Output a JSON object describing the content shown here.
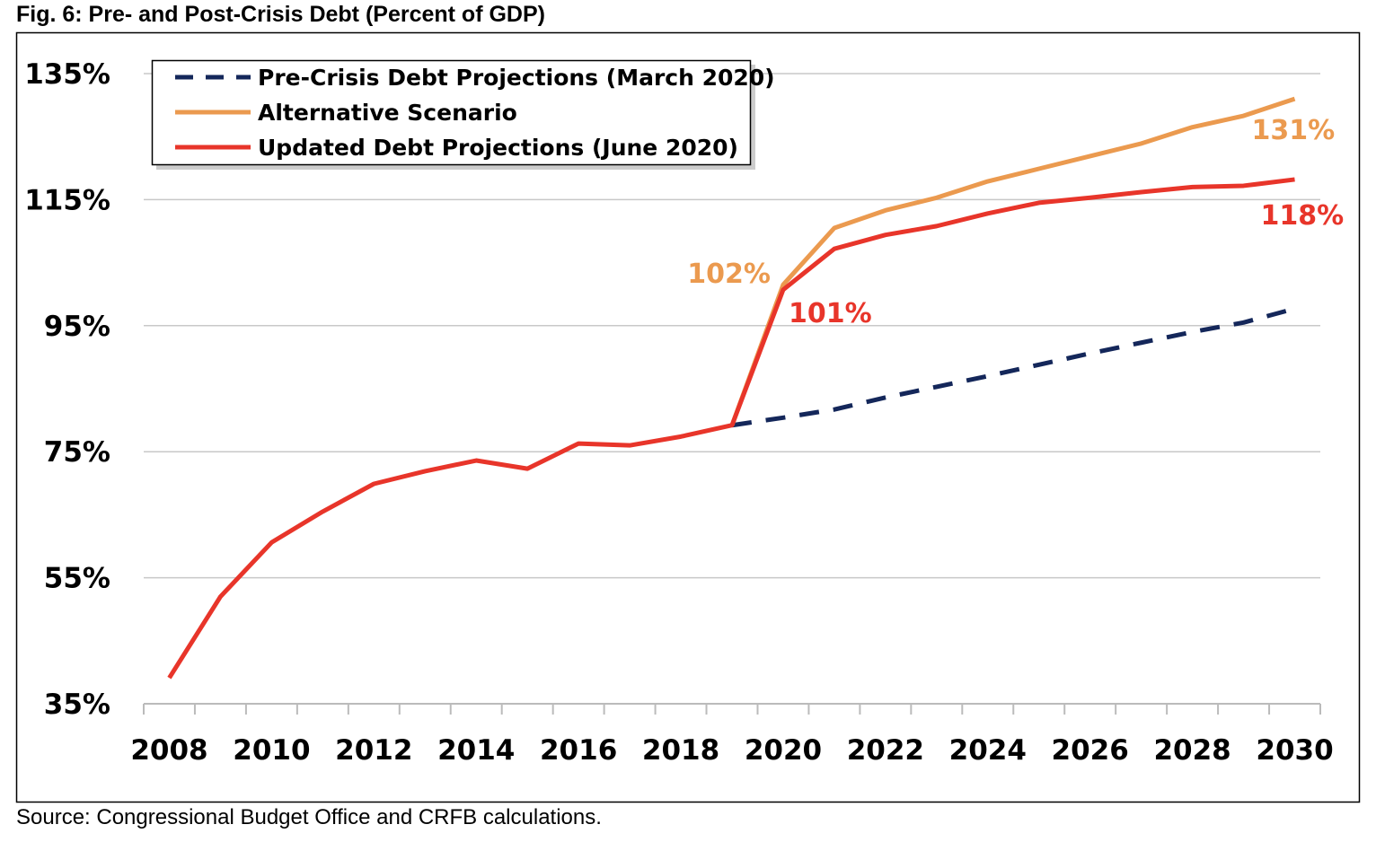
{
  "title": "Fig. 6: Pre- and Post-Crisis Debt (Percent of GDP)",
  "source": "Source: Congressional Budget Office and CRFB calculations.",
  "chart_data": {
    "type": "line",
    "title": "Fig. 6: Pre- and Post-Crisis Debt (Percent of GDP)",
    "xlabel": "",
    "ylabel": "",
    "x": [
      2008,
      2009,
      2010,
      2011,
      2012,
      2013,
      2014,
      2015,
      2016,
      2017,
      2018,
      2019,
      2020,
      2021,
      2022,
      2023,
      2024,
      2025,
      2026,
      2027,
      2028,
      2029,
      2030
    ],
    "x_tick_labels": [
      "2008",
      "2010",
      "2012",
      "2014",
      "2016",
      "2018",
      "2020",
      "2022",
      "2024",
      "2026",
      "2028",
      "2030"
    ],
    "y_tick_values": [
      35,
      55,
      75,
      95,
      115,
      135
    ],
    "y_tick_labels": [
      "35%",
      "55%",
      "75%",
      "95%",
      "115%",
      "135%"
    ],
    "ylim": [
      35,
      135
    ],
    "grid": true,
    "legend_position": "top-left",
    "series": [
      {
        "name": "Pre-Crisis Debt Projections (March 2020)",
        "color": "#14275a",
        "style": "dashed",
        "values": [
          null,
          null,
          null,
          null,
          null,
          null,
          null,
          null,
          null,
          null,
          null,
          79.2,
          80.4,
          81.7,
          83.6,
          85.3,
          87.0,
          88.8,
          90.6,
          92.3,
          94.0,
          95.5,
          97.7
        ]
      },
      {
        "name": "Alternative Scenario",
        "color": "#eb9a4f",
        "style": "solid",
        "values": [
          null,
          null,
          null,
          null,
          null,
          null,
          null,
          null,
          null,
          null,
          null,
          79.2,
          101.5,
          110.5,
          113.3,
          115.3,
          117.9,
          119.9,
          121.9,
          123.9,
          126.5,
          128.3,
          131.0
        ]
      },
      {
        "name": "Updated Debt Projections (June 2020)",
        "color": "#e8352a",
        "style": "solid",
        "values": [
          39.1,
          52.0,
          60.6,
          65.5,
          69.9,
          71.9,
          73.6,
          72.3,
          76.3,
          76.0,
          77.4,
          79.2,
          100.7,
          107.2,
          109.4,
          110.8,
          112.8,
          114.5,
          115.3,
          116.2,
          117.0,
          117.2,
          118.2
        ]
      }
    ],
    "annotations": [
      {
        "text": "102%",
        "series": 1,
        "x": 2020
      },
      {
        "text": "101%",
        "series": 2,
        "x": 2020
      },
      {
        "text": "131%",
        "series": 1,
        "x": 2030
      },
      {
        "text": "118%",
        "series": 2,
        "x": 2030
      }
    ]
  }
}
